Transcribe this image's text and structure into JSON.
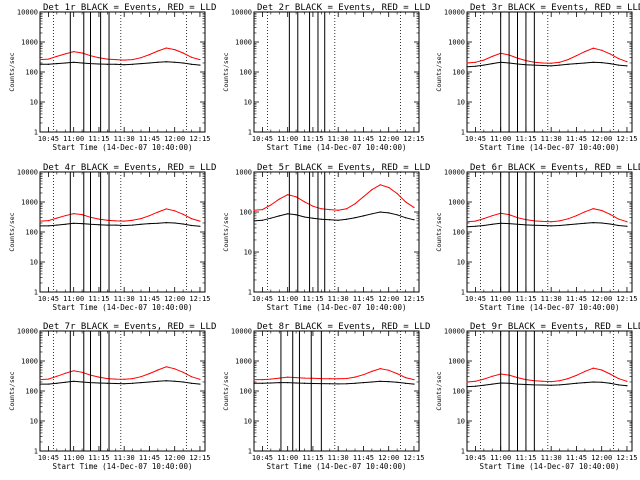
{
  "figure": {
    "x_axis_label": "Start Time (14-Dec-07 10:40:00)",
    "y_axis_label": "Counts/sec",
    "x_tick_labels": [
      "10:45",
      "11:00",
      "11:15",
      "11:30",
      "11:45",
      "12:00",
      "12:15"
    ],
    "y_tick_labels": [
      "1",
      "10",
      "100",
      "1000",
      "10000"
    ]
  },
  "colors": {
    "events": "#000000",
    "lld": "#ff0000",
    "frame": "#000000",
    "background": "#ffffff"
  },
  "chart_data": [
    {
      "type": "line",
      "title": "Det 1r BLACK = Events, RED = LLD",
      "xlim": [
        "10:40",
        "12:18"
      ],
      "ylim": [
        1,
        10000
      ],
      "yscale": "log",
      "x": [
        "10:40",
        "10:45",
        "10:50",
        "10:55",
        "11:00",
        "11:05",
        "11:10",
        "11:15",
        "11:20",
        "11:25",
        "11:30",
        "11:35",
        "11:40",
        "11:45",
        "11:50",
        "11:55",
        "12:00",
        "12:05",
        "12:10",
        "12:15"
      ],
      "series": [
        {
          "name": "BLACK = Events",
          "values": [
            180,
            180,
            190,
            200,
            210,
            200,
            190,
            185,
            180,
            180,
            175,
            180,
            190,
            200,
            210,
            220,
            210,
            200,
            180,
            170
          ]
        },
        {
          "name": "RED = LLD",
          "values": [
            260,
            270,
            330,
            400,
            480,
            430,
            350,
            300,
            270,
            260,
            250,
            260,
            300,
            380,
            500,
            630,
            560,
            430,
            310,
            260
          ]
        }
      ],
      "markers": {
        "vlines": [
          "10:58",
          "11:06",
          "11:10",
          "11:16",
          "11:21"
        ],
        "dotted": [
          "10:48",
          "11:28",
          "12:07"
        ]
      }
    },
    {
      "type": "line",
      "title": "Det 2r BLACK = Events, RED = LLD",
      "xlim": [
        "10:40",
        "12:18"
      ],
      "ylim": [
        1,
        10000
      ],
      "yscale": "log",
      "x": [],
      "series": [],
      "markers": {
        "vlines": [
          "11:01",
          "11:06",
          "11:13",
          "11:18",
          "11:22"
        ],
        "dotted": [
          "10:48",
          "11:28",
          "12:07"
        ]
      }
    },
    {
      "type": "line",
      "title": "Det 3r BLACK = Events, RED = LLD",
      "xlim": [
        "10:40",
        "12:18"
      ],
      "ylim": [
        1,
        10000
      ],
      "yscale": "log",
      "x": [
        "10:40",
        "10:45",
        "10:50",
        "10:55",
        "11:00",
        "11:05",
        "11:10",
        "11:15",
        "11:20",
        "11:25",
        "11:30",
        "11:35",
        "11:40",
        "11:45",
        "11:50",
        "11:55",
        "12:00",
        "12:05",
        "12:10",
        "12:15"
      ],
      "series": [
        {
          "name": "BLACK = Events",
          "values": [
            150,
            155,
            170,
            190,
            210,
            200,
            185,
            175,
            170,
            165,
            160,
            170,
            180,
            190,
            200,
            210,
            205,
            190,
            170,
            160
          ]
        },
        {
          "name": "RED = LLD",
          "values": [
            200,
            210,
            250,
            330,
            420,
            370,
            290,
            240,
            210,
            200,
            195,
            210,
            260,
            350,
            480,
            620,
            530,
            400,
            280,
            220
          ]
        }
      ],
      "markers": {
        "vlines": [
          "11:00",
          "11:05",
          "11:10",
          "11:15",
          "11:20"
        ],
        "dotted": [
          "10:48",
          "11:28",
          "12:07"
        ]
      }
    },
    {
      "type": "line",
      "title": "Det 4r BLACK = Events, RED = LLD",
      "xlim": [
        "10:40",
        "12:18"
      ],
      "ylim": [
        1,
        10000
      ],
      "yscale": "log",
      "x": [
        "10:40",
        "10:45",
        "10:50",
        "10:55",
        "11:00",
        "11:05",
        "11:10",
        "11:15",
        "11:20",
        "11:25",
        "11:30",
        "11:35",
        "11:40",
        "11:45",
        "11:50",
        "11:55",
        "12:00",
        "12:05",
        "12:10",
        "12:15"
      ],
      "series": [
        {
          "name": "BLACK = Events",
          "values": [
            160,
            160,
            170,
            180,
            195,
            190,
            180,
            175,
            170,
            170,
            165,
            170,
            180,
            190,
            195,
            205,
            200,
            185,
            165,
            155
          ]
        },
        {
          "name": "RED = LLD",
          "values": [
            230,
            240,
            290,
            350,
            410,
            380,
            310,
            270,
            245,
            235,
            230,
            245,
            280,
            350,
            460,
            590,
            510,
            390,
            280,
            230
          ]
        }
      ],
      "markers": {
        "vlines": [
          "10:58",
          "11:06",
          "11:10",
          "11:16",
          "11:21"
        ],
        "dotted": [
          "10:48",
          "11:28",
          "12:07"
        ]
      }
    },
    {
      "type": "line",
      "title": "Det 5r BLACK = Events, RED = LLD",
      "xlim": [
        "10:40",
        "12:18"
      ],
      "ylim": [
        1,
        1000
      ],
      "yscale": "log",
      "x": [
        "10:40",
        "10:45",
        "10:50",
        "10:55",
        "11:00",
        "11:05",
        "11:10",
        "11:15",
        "11:20",
        "11:25",
        "11:30",
        "11:35",
        "11:40",
        "11:45",
        "11:50",
        "11:55",
        "12:00",
        "12:05",
        "12:10",
        "12:15"
      ],
      "series": [
        {
          "name": "BLACK = Events",
          "values": [
            60,
            62,
            70,
            80,
            90,
            85,
            75,
            70,
            66,
            64,
            62,
            66,
            72,
            80,
            90,
            100,
            95,
            85,
            72,
            64
          ]
        },
        {
          "name": "RED = LLD",
          "values": [
            110,
            115,
            150,
            210,
            270,
            240,
            180,
            140,
            120,
            115,
            110,
            120,
            160,
            240,
            360,
            480,
            410,
            290,
            180,
            130
          ]
        }
      ],
      "markers": {
        "vlines": [
          "11:01",
          "11:06",
          "11:13",
          "11:18",
          "11:22"
        ],
        "dotted": [
          "10:48",
          "11:28",
          "12:07"
        ]
      }
    },
    {
      "type": "line",
      "title": "Det 6r BLACK = Events, RED = LLD",
      "xlim": [
        "10:40",
        "12:18"
      ],
      "ylim": [
        1,
        10000
      ],
      "yscale": "log",
      "x": [
        "10:40",
        "10:45",
        "10:50",
        "10:55",
        "11:00",
        "11:05",
        "11:10",
        "11:15",
        "11:20",
        "11:25",
        "11:30",
        "11:35",
        "11:40",
        "11:45",
        "11:50",
        "11:55",
        "12:00",
        "12:05",
        "12:10",
        "12:15"
      ],
      "series": [
        {
          "name": "BLACK = Events",
          "values": [
            150,
            155,
            165,
            180,
            195,
            190,
            180,
            172,
            168,
            165,
            160,
            165,
            175,
            185,
            195,
            205,
            200,
            185,
            165,
            155
          ]
        },
        {
          "name": "RED = LLD",
          "values": [
            220,
            230,
            280,
            350,
            420,
            380,
            300,
            260,
            235,
            225,
            220,
            235,
            275,
            350,
            470,
            600,
            520,
            390,
            270,
            220
          ]
        }
      ],
      "markers": {
        "vlines": [
          "11:00",
          "11:05",
          "11:10",
          "11:15",
          "11:20"
        ],
        "dotted": [
          "10:48",
          "11:28",
          "12:07"
        ]
      }
    },
    {
      "type": "line",
      "title": "Det 7r BLACK = Events, RED = LLD",
      "xlim": [
        "10:40",
        "12:18"
      ],
      "ylim": [
        1,
        10000
      ],
      "yscale": "log",
      "x": [
        "10:40",
        "10:45",
        "10:50",
        "10:55",
        "11:00",
        "11:05",
        "11:10",
        "11:15",
        "11:20",
        "11:25",
        "11:30",
        "11:35",
        "11:40",
        "11:45",
        "11:50",
        "11:55",
        "12:00",
        "12:05",
        "12:10",
        "12:15"
      ],
      "series": [
        {
          "name": "BLACK = Events",
          "values": [
            170,
            170,
            180,
            195,
            210,
            200,
            190,
            185,
            180,
            178,
            175,
            180,
            190,
            200,
            210,
            220,
            212,
            200,
            180,
            170
          ]
        },
        {
          "name": "RED = LLD",
          "values": [
            240,
            250,
            310,
            390,
            470,
            420,
            340,
            290,
            260,
            250,
            245,
            260,
            300,
            380,
            500,
            640,
            550,
            420,
            300,
            245
          ]
        }
      ],
      "markers": {
        "vlines": [
          "10:58",
          "11:06",
          "11:10",
          "11:16",
          "11:21"
        ],
        "dotted": [
          "10:48",
          "11:28",
          "12:07"
        ]
      }
    },
    {
      "type": "line",
      "title": "Det 8r BLACK = Events, RED = LLD",
      "xlim": [
        "10:40",
        "12:18"
      ],
      "ylim": [
        1,
        10000
      ],
      "yscale": "log",
      "x": [
        "10:40",
        "10:45",
        "10:50",
        "10:55",
        "11:00",
        "11:05",
        "11:10",
        "11:15",
        "11:20",
        "11:25",
        "11:30",
        "11:35",
        "11:40",
        "11:45",
        "11:50",
        "11:55",
        "12:00",
        "12:05",
        "12:10",
        "12:15"
      ],
      "series": [
        {
          "name": "BLACK = Events",
          "values": [
            180,
            180,
            185,
            190,
            190,
            185,
            180,
            178,
            176,
            175,
            172,
            175,
            180,
            190,
            200,
            210,
            205,
            195,
            180,
            170
          ]
        },
        {
          "name": "RED = LLD",
          "values": [
            240,
            240,
            250,
            270,
            290,
            280,
            270,
            265,
            260,
            258,
            255,
            262,
            290,
            350,
            450,
            560,
            490,
            380,
            280,
            240
          ]
        }
      ],
      "markers": {
        "vlines": [
          "10:56",
          "11:03",
          "11:07",
          "11:14",
          "11:20"
        ],
        "dotted": [
          "10:48",
          "11:28",
          "12:07"
        ]
      }
    },
    {
      "type": "line",
      "title": "Det 9r BLACK = Events, RED = LLD",
      "xlim": [
        "10:40",
        "12:18"
      ],
      "ylim": [
        1,
        10000
      ],
      "yscale": "log",
      "x": [
        "10:40",
        "10:45",
        "10:50",
        "10:55",
        "11:00",
        "11:05",
        "11:10",
        "11:15",
        "11:20",
        "11:25",
        "11:30",
        "11:35",
        "11:40",
        "11:45",
        "11:50",
        "11:55",
        "12:00",
        "12:05",
        "12:10",
        "12:15"
      ],
      "series": [
        {
          "name": "BLACK = Events",
          "values": [
            140,
            145,
            155,
            170,
            185,
            180,
            170,
            165,
            160,
            158,
            155,
            160,
            170,
            180,
            190,
            200,
            195,
            180,
            160,
            150
          ]
        },
        {
          "name": "RED = LLD",
          "values": [
            200,
            210,
            250,
            310,
            370,
            340,
            280,
            240,
            220,
            210,
            205,
            220,
            260,
            330,
            450,
            580,
            500,
            370,
            260,
            210
          ]
        }
      ],
      "markers": {
        "vlines": [
          "11:00",
          "11:05",
          "11:10",
          "11:15",
          "11:20"
        ],
        "dotted": [
          "10:48",
          "11:28",
          "12:07"
        ]
      }
    }
  ]
}
